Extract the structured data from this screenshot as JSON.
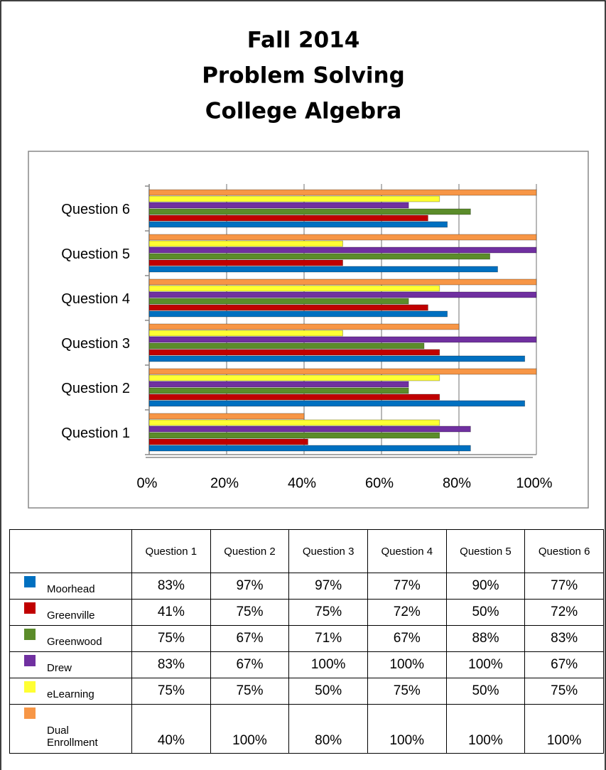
{
  "chart_data": {
    "type": "bar",
    "orientation": "horizontal",
    "title": [
      "Fall 2014",
      "Problem Solving",
      "College Algebra"
    ],
    "categories": [
      "Question 1",
      "Question 2",
      "Question 3",
      "Question 4",
      "Question 5",
      "Question 6"
    ],
    "series": [
      {
        "name": "Moorhead",
        "color": "#0070c0",
        "values": [
          83,
          97,
          97,
          77,
          90,
          77
        ],
        "value_labels": [
          "83%",
          "97%",
          "97%",
          "77%",
          "90%",
          "77%"
        ]
      },
      {
        "name": "Greenville",
        "color": "#c00000",
        "values": [
          41,
          75,
          75,
          72,
          50,
          72
        ],
        "value_labels": [
          "41%",
          "75%",
          "75%",
          "72%",
          "50%",
          "72%"
        ]
      },
      {
        "name": "Greenwood",
        "color": "#5b8c2a",
        "values": [
          75,
          67,
          71,
          67,
          88,
          83
        ],
        "value_labels": [
          "75%",
          "67%",
          "71%",
          "67%",
          "88%",
          "83%"
        ]
      },
      {
        "name": "Drew",
        "color": "#7030a0",
        "values": [
          83,
          67,
          100,
          100,
          100,
          67
        ],
        "value_labels": [
          "83%",
          "67%",
          "100%",
          "100%",
          "100%",
          "67%"
        ]
      },
      {
        "name": "eLearning",
        "color": "#ffff33",
        "values": [
          75,
          75,
          50,
          75,
          50,
          75
        ],
        "value_labels": [
          "75%",
          "75%",
          "50%",
          "75%",
          "50%",
          "75%"
        ]
      },
      {
        "name": "Dual Enrollment",
        "color": "#f79646",
        "values": [
          40,
          100,
          80,
          100,
          100,
          100
        ],
        "value_labels": [
          "40%",
          "100%",
          "80%",
          "100%",
          "100%",
          "100%"
        ]
      }
    ],
    "xlim": [
      0,
      100
    ],
    "xticks": [
      {
        "value": 0,
        "label": "0%"
      },
      {
        "value": 20,
        "label": "20%"
      },
      {
        "value": 40,
        "label": "40%"
      },
      {
        "value": 60,
        "label": "60%"
      },
      {
        "value": 80,
        "label": "80%"
      },
      {
        "value": 100,
        "label": "100%"
      }
    ],
    "grid": true
  }
}
